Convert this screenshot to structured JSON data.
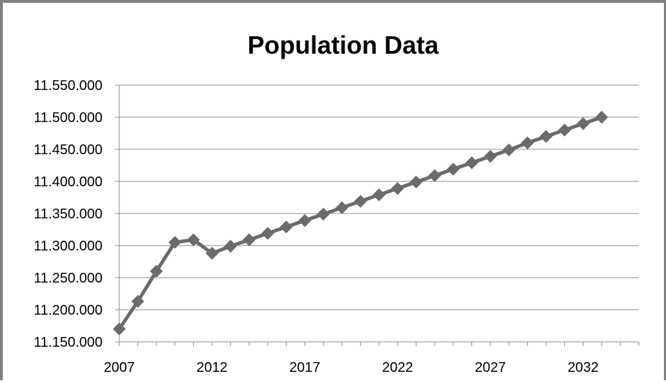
{
  "chart_data": {
    "type": "line",
    "title": "Population Data",
    "xlabel": "",
    "ylabel": "",
    "x": [
      2007,
      2008,
      2009,
      2010,
      2011,
      2012,
      2013,
      2014,
      2015,
      2016,
      2017,
      2018,
      2019,
      2020,
      2021,
      2022,
      2023,
      2024,
      2025,
      2026,
      2027,
      2028,
      2029,
      2030,
      2031,
      2032,
      2033
    ],
    "series": [
      {
        "values": [
          11170000,
          11213000,
          11260000,
          11305000,
          11309000,
          11288000,
          11299000,
          11309000,
          11319000,
          11329000,
          11339000,
          11349000,
          11359000,
          11369000,
          11379000,
          11389000,
          11399000,
          11409000,
          11419000,
          11429000,
          11439000,
          11449000,
          11460000,
          11470000,
          11480000,
          11490000,
          11500000
        ],
        "color": "#6b6b6b",
        "marker": "diamond"
      }
    ],
    "xlim": [
      2007,
      2035
    ],
    "ylim": [
      11150000,
      11550000
    ],
    "x_ticks": [
      2007,
      2012,
      2017,
      2022,
      2027,
      2032
    ],
    "x_tick_labels": [
      "2007",
      "2012",
      "2017",
      "2022",
      "2027",
      "2032"
    ],
    "y_ticks": [
      11150000,
      11200000,
      11250000,
      11300000,
      11350000,
      11400000,
      11450000,
      11500000,
      11550000
    ],
    "y_tick_labels": [
      "11.150.000",
      "11.200.000",
      "11.250.000",
      "11.300.000",
      "11.350.000",
      "11.400.000",
      "11.450.000",
      "11.500.000",
      "11.550.000"
    ],
    "grid": "horizontal",
    "legend": "none"
  }
}
